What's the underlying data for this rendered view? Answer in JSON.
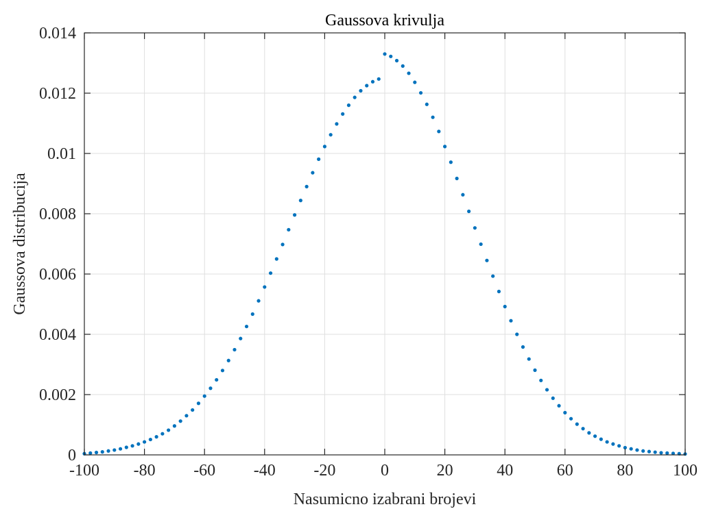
{
  "chart_data": {
    "type": "scatter",
    "title": "Gaussova krivulja",
    "xlabel": "Nasumicno izabrani brojevi",
    "ylabel": "Gaussova distribucija",
    "xlim": [
      -100,
      100
    ],
    "ylim": [
      0,
      0.014
    ],
    "xticks": [
      -100,
      -80,
      -60,
      -40,
      -20,
      0,
      20,
      40,
      60,
      80,
      100
    ],
    "xtick_labels": [
      "-100",
      "-80",
      "-60",
      "-40",
      "-20",
      "0",
      "20",
      "40",
      "60",
      "80",
      "100"
    ],
    "yticks": [
      0,
      0.002,
      0.004,
      0.006,
      0.008,
      0.01,
      0.012,
      0.014
    ],
    "ytick_labels": [
      "0",
      "0.002",
      "0.004",
      "0.006",
      "0.008",
      "0.01",
      "0.012",
      "0.014"
    ],
    "grid": true,
    "marker_color": "#0072BD",
    "series": [
      {
        "x": [
          -100,
          -98,
          -96,
          -94,
          -92,
          -90,
          -88,
          -86,
          -84,
          -82,
          -80,
          -78,
          -76,
          -74,
          -72,
          -70,
          -68,
          -66,
          -64,
          -62,
          -60,
          -58,
          -56,
          -54,
          -52,
          -50,
          -48,
          -46,
          -44,
          -42,
          -40,
          -38,
          -36,
          -34,
          -32,
          -30,
          -28,
          -26,
          -24,
          -22,
          -20,
          -18,
          -16,
          -14,
          -12,
          -10,
          -8,
          -6,
          -4,
          -2,
          0,
          2,
          4,
          6,
          8,
          10,
          12,
          14,
          16,
          18,
          20,
          22,
          24,
          26,
          28,
          30,
          32,
          34,
          36,
          38,
          40,
          42,
          44,
          46,
          48,
          50,
          52,
          54,
          56,
          58,
          60,
          62,
          64,
          66,
          68,
          70,
          72,
          74,
          76,
          78,
          80,
          82,
          84,
          86,
          88,
          90,
          92,
          94,
          96,
          98,
          100
        ],
        "y": [
          4e-05,
          6e-05,
          8e-05,
          0.0001,
          0.00013,
          0.00016,
          0.0002,
          0.00025,
          0.0003,
          0.00036,
          0.00043,
          0.00051,
          0.0006,
          0.0007,
          0.00082,
          0.00096,
          0.00112,
          0.0013,
          0.00149,
          0.00171,
          0.00195,
          0.00221,
          0.00249,
          0.0028,
          0.00313,
          0.00349,
          0.00386,
          0.00426,
          0.00467,
          0.00511,
          0.00557,
          0.00603,
          0.0065,
          0.00698,
          0.00747,
          0.00796,
          0.00844,
          0.0089,
          0.00936,
          0.00981,
          0.01023,
          0.01062,
          0.01098,
          0.01131,
          0.0116,
          0.01186,
          0.01208,
          0.01225,
          0.01238,
          0.01247,
          0.0133,
          0.01322,
          0.01308,
          0.0129,
          0.01266,
          0.01236,
          0.01201,
          0.01163,
          0.0112,
          0.01073,
          0.01023,
          0.00971,
          0.00917,
          0.00863,
          0.00808,
          0.00753,
          0.00699,
          0.00645,
          0.00593,
          0.00542,
          0.00492,
          0.00445,
          0.004,
          0.00358,
          0.00318,
          0.00281,
          0.00247,
          0.00216,
          0.00188,
          0.00163,
          0.0014,
          0.0012,
          0.00102,
          0.00087,
          0.00073,
          0.00062,
          0.00052,
          0.00043,
          0.00036,
          0.0003,
          0.00024,
          0.0002,
          0.00016,
          0.00013,
          0.00011,
          9e-05,
          7e-05,
          6e-05,
          5e-05,
          4e-05,
          3e-05
        ]
      }
    ]
  }
}
